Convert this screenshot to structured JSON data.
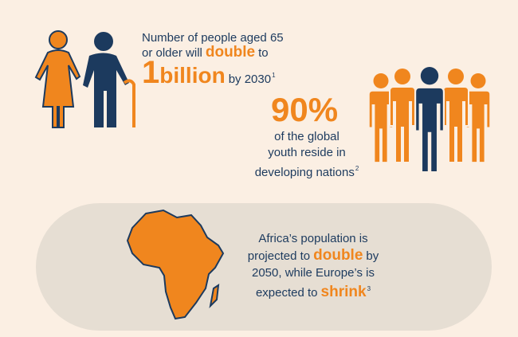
{
  "fact_aging": {
    "line1": "Number of people aged 65",
    "line2_start": "or older will",
    "line2_emphasis": "double",
    "line2_end": "to",
    "big_number": "1",
    "big_word": "billion",
    "line3_end": "by 2030",
    "footnote": "1"
  },
  "fact_youth": {
    "headline": "90%",
    "line1": "of the global",
    "line2": "youth reside in",
    "line3": "developing nations",
    "footnote": "2"
  },
  "fact_africa": {
    "line1": "Africa’s population is",
    "line2_start": "projected to",
    "line2_emphasis": "double",
    "line2_end": "by",
    "line3": "2050, while Europe’s is",
    "line4_start": "expected to",
    "line4_emphasis": "shrink",
    "footnote": "3"
  }
}
